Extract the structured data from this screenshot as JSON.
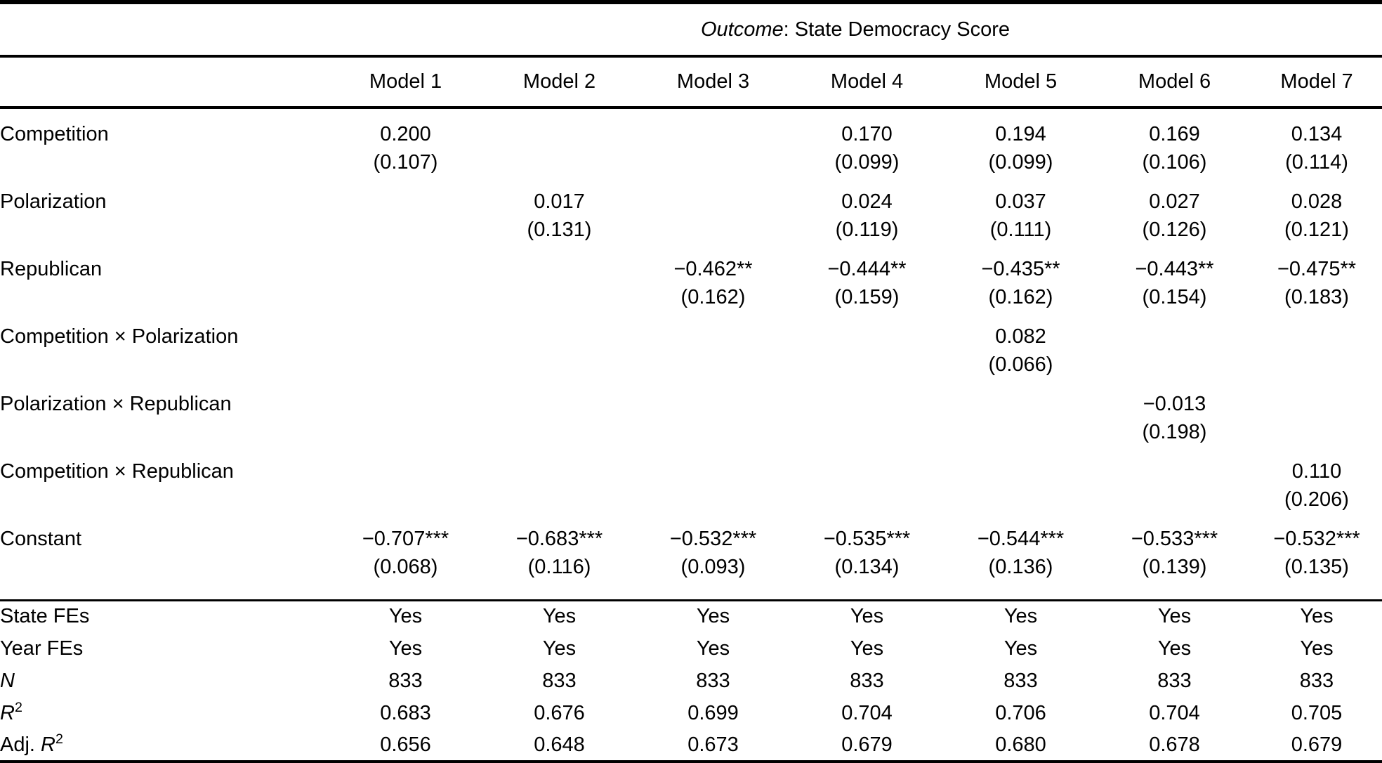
{
  "page": {
    "background_color": "#ffffff",
    "text_color": "#000000"
  },
  "table": {
    "outcome_header": {
      "italic_part": "Outcome",
      "rest_part": ": State Democracy Score"
    },
    "model_headers": [
      "Model 1",
      "Model 2",
      "Model 3",
      "Model 4",
      "Model 5",
      "Model 6",
      "Model 7"
    ],
    "coefficient_rows": [
      {
        "label": "Competition",
        "estimates": [
          "0.200",
          "",
          "",
          "0.170",
          "0.194",
          "0.169",
          "0.134"
        ],
        "std_errors": [
          "(0.107)",
          "",
          "",
          "(0.099)",
          "(0.099)",
          "(0.106)",
          "(0.114)"
        ]
      },
      {
        "label": "Polarization",
        "estimates": [
          "",
          "0.017",
          "",
          "0.024",
          "0.037",
          "0.027",
          "0.028"
        ],
        "std_errors": [
          "",
          "(0.131)",
          "",
          "(0.119)",
          "(0.111)",
          "(0.126)",
          "(0.121)"
        ]
      },
      {
        "label": "Republican",
        "estimates": [
          "",
          "",
          "−0.462**",
          "−0.444**",
          "−0.435**",
          "−0.443**",
          "−0.475**"
        ],
        "std_errors": [
          "",
          "",
          "(0.162)",
          "(0.159)",
          "(0.162)",
          "(0.154)",
          "(0.183)"
        ]
      },
      {
        "label": "Competition × Polarization",
        "estimates": [
          "",
          "",
          "",
          "",
          "0.082",
          "",
          ""
        ],
        "std_errors": [
          "",
          "",
          "",
          "",
          "(0.066)",
          "",
          ""
        ]
      },
      {
        "label": "Polarization × Republican",
        "estimates": [
          "",
          "",
          "",
          "",
          "",
          "−0.013",
          ""
        ],
        "std_errors": [
          "",
          "",
          "",
          "",
          "",
          "(0.198)",
          ""
        ]
      },
      {
        "label": "Competition × Republican",
        "estimates": [
          "",
          "",
          "",
          "",
          "",
          "",
          "0.110"
        ],
        "std_errors": [
          "",
          "",
          "",
          "",
          "",
          "",
          "(0.206)"
        ]
      },
      {
        "label": "Constant",
        "estimates": [
          "−0.707***",
          "−0.683***",
          "−0.532***",
          "−0.535***",
          "−0.544***",
          "−0.533***",
          "−0.532***"
        ],
        "std_errors": [
          "(0.068)",
          "(0.116)",
          "(0.093)",
          "(0.134)",
          "(0.136)",
          "(0.139)",
          "(0.135)"
        ]
      }
    ],
    "stats_rows": [
      {
        "label_parts": [
          {
            "text": "State FEs"
          }
        ],
        "values": [
          "Yes",
          "Yes",
          "Yes",
          "Yes",
          "Yes",
          "Yes",
          "Yes"
        ]
      },
      {
        "label_parts": [
          {
            "text": "Year FEs"
          }
        ],
        "values": [
          "Yes",
          "Yes",
          "Yes",
          "Yes",
          "Yes",
          "Yes",
          "Yes"
        ]
      },
      {
        "label_parts": [
          {
            "text": "N",
            "italic": true
          }
        ],
        "values": [
          "833",
          "833",
          "833",
          "833",
          "833",
          "833",
          "833"
        ]
      },
      {
        "label_parts": [
          {
            "text": "R",
            "italic": true
          },
          {
            "text": "2",
            "sup": true
          }
        ],
        "values": [
          "0.683",
          "0.676",
          "0.699",
          "0.704",
          "0.706",
          "0.704",
          "0.705"
        ]
      },
      {
        "label_parts": [
          {
            "text": "Adj. "
          },
          {
            "text": "R",
            "italic": true
          },
          {
            "text": "2",
            "sup": true
          }
        ],
        "values": [
          "0.656",
          "0.648",
          "0.673",
          "0.679",
          "0.680",
          "0.678",
          "0.679"
        ]
      }
    ]
  }
}
